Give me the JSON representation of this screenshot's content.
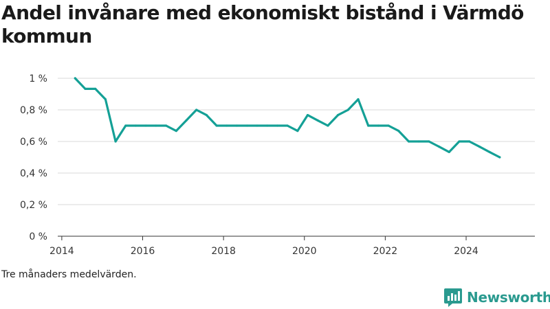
{
  "title": "Andel invånare med ekonomiskt bistånd i Värmdö kommun",
  "caption": "Tre månaders medelvärden.",
  "brand": "Newsworthy",
  "colors": {
    "line": "#14a096",
    "brand": "#2a9a8f",
    "grid": "#d9d9d9"
  },
  "chart_data": {
    "type": "line",
    "title": "Andel invånare med ekonomiskt bistånd i Värmdö kommun",
    "xlabel": "",
    "ylabel": "",
    "xlim": [
      2013.9,
      2025.7
    ],
    "ylim": [
      0,
      1
    ],
    "x_ticks": [
      2014,
      2016,
      2018,
      2020,
      2022,
      2024
    ],
    "y_ticks": [
      0,
      0.2,
      0.4,
      0.6,
      0.8,
      1
    ],
    "y_tick_labels": [
      "0 %",
      "0,2 %",
      "0,4 %",
      "0,6 %",
      "0,8 %",
      "1 %"
    ],
    "grid": true,
    "series": [
      {
        "x": [
          2014.33,
          2014.58,
          2014.83,
          2015.08,
          2015.33,
          2015.58,
          2015.83,
          2016.08,
          2016.33,
          2016.58,
          2016.83,
          2017.08,
          2017.33,
          2017.58,
          2017.83,
          2018.08,
          2018.33,
          2018.58,
          2018.83,
          2019.08,
          2019.33,
          2019.58,
          2019.83,
          2020.08,
          2020.33,
          2020.58,
          2020.83,
          2021.08,
          2021.33,
          2021.58,
          2021.83,
          2022.08,
          2022.33,
          2022.58,
          2022.83,
          2023.08,
          2023.33,
          2023.58,
          2023.83,
          2024.08,
          2024.33,
          2024.58,
          2024.83
        ],
        "values": [
          1.0,
          0.933,
          0.933,
          0.867,
          0.6,
          0.7,
          0.7,
          0.7,
          0.7,
          0.7,
          0.667,
          0.733,
          0.8,
          0.767,
          0.7,
          0.7,
          0.7,
          0.7,
          0.7,
          0.7,
          0.7,
          0.7,
          0.667,
          0.767,
          0.733,
          0.7,
          0.767,
          0.8,
          0.867,
          0.7,
          0.7,
          0.7,
          0.667,
          0.6,
          0.6,
          0.6,
          0.567,
          0.533,
          0.6,
          0.6,
          0.567,
          0.533,
          0.5
        ]
      }
    ]
  }
}
